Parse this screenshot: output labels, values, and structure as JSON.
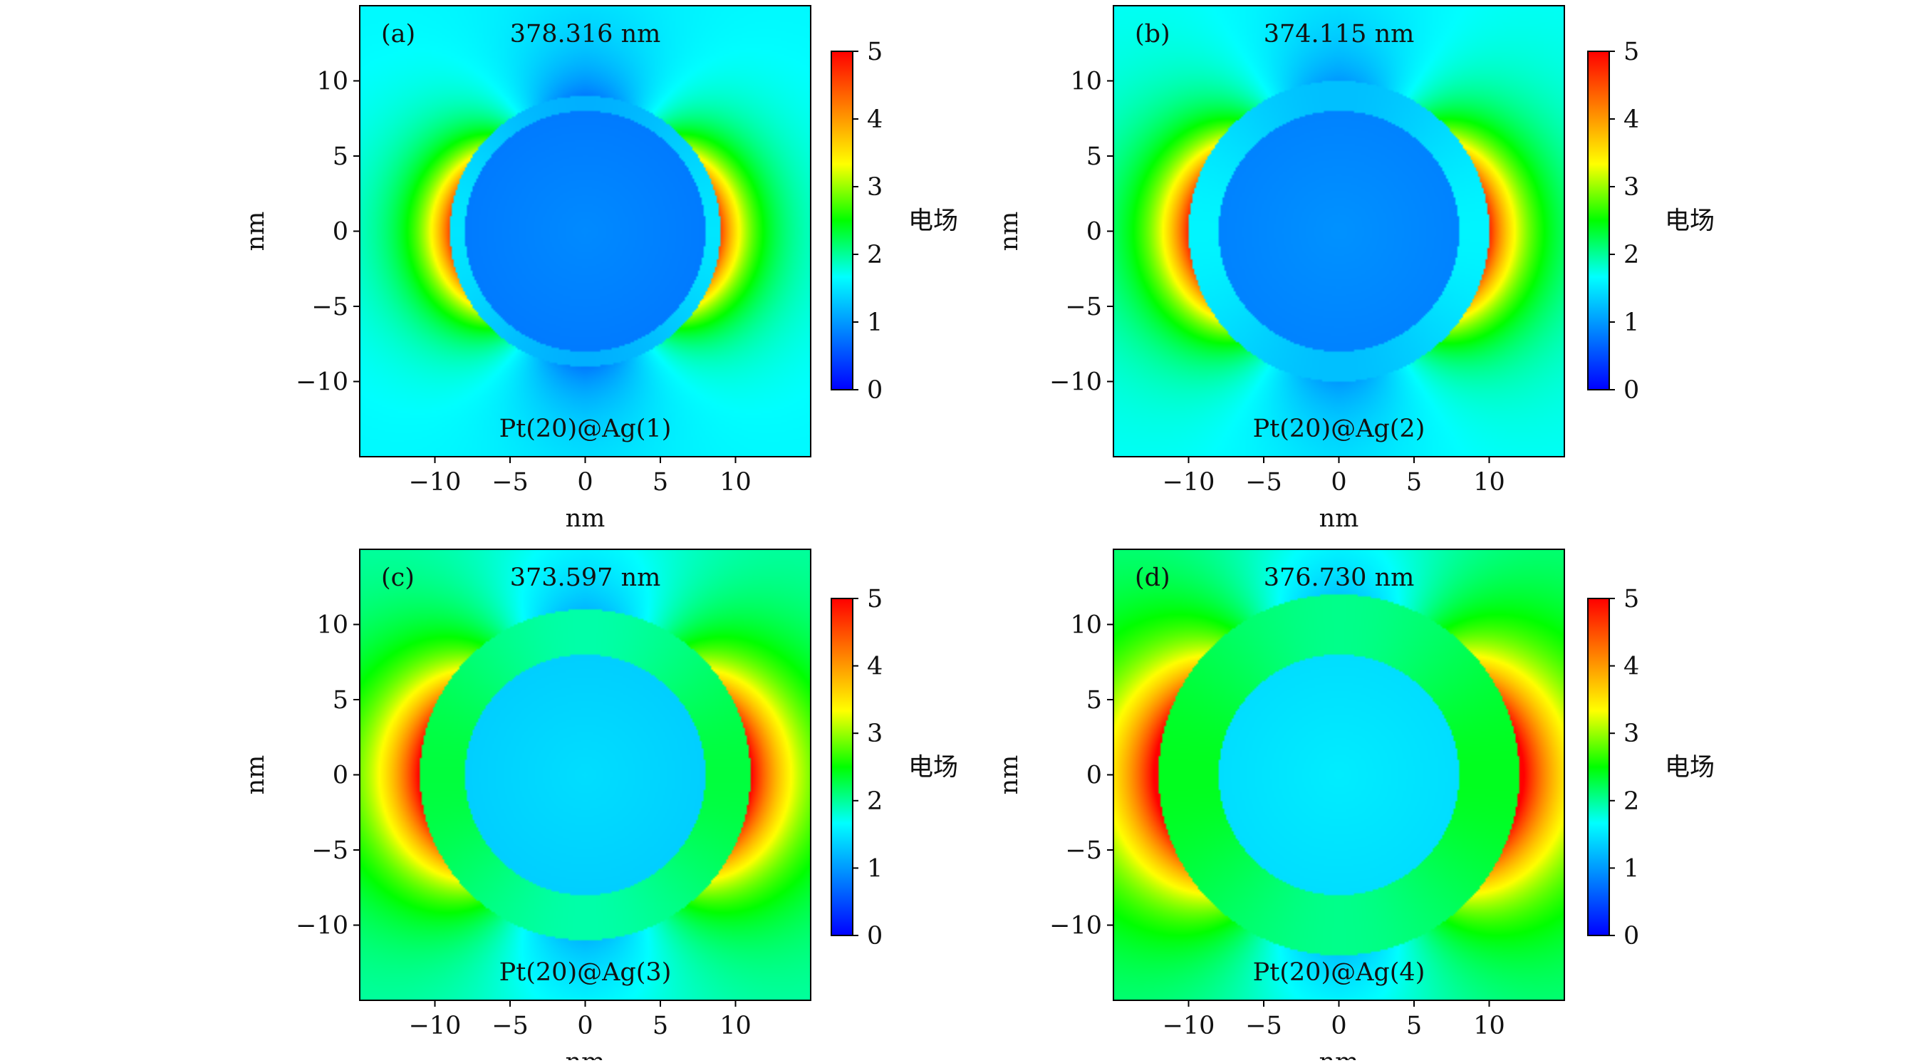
{
  "colormap_stops": [
    "#0000ff",
    "#0080ff",
    "#00ffff",
    "#00ff00",
    "#ffff00",
    "#ff8000",
    "#ff0000"
  ],
  "chart_data": [
    {
      "type": "heatmap",
      "panel_label": "(a)",
      "wavelength": "378.316 nm",
      "sample": "Pt(20)@Ag(1)",
      "xlabel": "nm",
      "ylabel": "nm",
      "xlim": [
        -15,
        15
      ],
      "ylim": [
        -15,
        15
      ],
      "xticks": [
        -10,
        -5,
        0,
        5,
        10
      ],
      "yticks": [
        -10,
        -5,
        0,
        5,
        10
      ],
      "xtick_labels": [
        "−10",
        "−5",
        "0",
        "5",
        "10"
      ],
      "ytick_labels": [
        "−10",
        "−5",
        "0",
        "5",
        "10"
      ],
      "core_radius": 8,
      "shell_radius": 9,
      "core_field": 0.8,
      "shell_field": 1.5,
      "background_field": 1.6,
      "hotspot_field": 4.3,
      "decay_length": 2.2,
      "pole_min_field": 0.8,
      "colorbar": {
        "label": "电场",
        "min": 0,
        "max": 5,
        "ticks": [
          0,
          1,
          2,
          3,
          4,
          5
        ],
        "tick_labels": [
          "0",
          "1",
          "2",
          "3",
          "4",
          "5"
        ]
      }
    },
    {
      "type": "heatmap",
      "panel_label": "(b)",
      "wavelength": "374.115 nm",
      "sample": "Pt(20)@Ag(2)",
      "xlabel": "nm",
      "ylabel": "nm",
      "xlim": [
        -15,
        15
      ],
      "ylim": [
        -15,
        15
      ],
      "xticks": [
        -10,
        -5,
        0,
        5,
        10
      ],
      "yticks": [
        -10,
        -5,
        0,
        5,
        10
      ],
      "xtick_labels": [
        "−10",
        "−5",
        "0",
        "5",
        "10"
      ],
      "ytick_labels": [
        "−10",
        "−5",
        "0",
        "5",
        "10"
      ],
      "core_radius": 8,
      "shell_radius": 10,
      "core_field": 0.85,
      "shell_field": 1.6,
      "background_field": 1.65,
      "hotspot_field": 4.5,
      "decay_length": 2.6,
      "pole_min_field": 1.0,
      "colorbar": {
        "label": "电场",
        "min": 0,
        "max": 5,
        "ticks": [
          0,
          1,
          2,
          3,
          4,
          5
        ],
        "tick_labels": [
          "0",
          "1",
          "2",
          "3",
          "4",
          "5"
        ]
      }
    },
    {
      "type": "heatmap",
      "panel_label": "(c)",
      "wavelength": "373.597 nm",
      "sample": "Pt(20)@Ag(3)",
      "xlabel": "nm",
      "ylabel": "nm",
      "xlim": [
        -15,
        15
      ],
      "ylim": [
        -15,
        15
      ],
      "xticks": [
        -10,
        -5,
        0,
        5,
        10
      ],
      "yticks": [
        -10,
        -5,
        0,
        5,
        10
      ],
      "xtick_labels": [
        "−10",
        "−5",
        "0",
        "5",
        "10"
      ],
      "ytick_labels": [
        "−10",
        "−5",
        "0",
        "5",
        "10"
      ],
      "core_radius": 8,
      "shell_radius": 11,
      "core_field": 1.35,
      "shell_field": 2.3,
      "background_field": 1.9,
      "hotspot_field": 4.8,
      "decay_length": 3.2,
      "pole_min_field": 1.2,
      "colorbar": {
        "label": "电场",
        "min": 0,
        "max": 5,
        "ticks": [
          0,
          1,
          2,
          3,
          4,
          5
        ],
        "tick_labels": [
          "0",
          "1",
          "2",
          "3",
          "4",
          "5"
        ]
      }
    },
    {
      "type": "heatmap",
      "panel_label": "(d)",
      "wavelength": "376.730 nm",
      "sample": "Pt(20)@Ag(4)",
      "xlabel": "nm",
      "ylabel": "nm",
      "xlim": [
        -15,
        15
      ],
      "ylim": [
        -15,
        15
      ],
      "xticks": [
        -10,
        -5,
        0,
        5,
        10
      ],
      "yticks": [
        -10,
        -5,
        0,
        5,
        10
      ],
      "xtick_labels": [
        "−10",
        "−5",
        "0",
        "5",
        "10"
      ],
      "ytick_labels": [
        "−10",
        "−5",
        "0",
        "5",
        "10"
      ],
      "core_radius": 8,
      "shell_radius": 12,
      "core_field": 1.45,
      "shell_field": 2.4,
      "background_field": 2.0,
      "hotspot_field": 5.0,
      "decay_length": 3.6,
      "pole_min_field": 1.3,
      "colorbar": {
        "label": "电场",
        "min": 0,
        "max": 5,
        "ticks": [
          0,
          1,
          2,
          3,
          4,
          5
        ],
        "tick_labels": [
          "0",
          "1",
          "2",
          "3",
          "4",
          "5"
        ]
      }
    }
  ]
}
